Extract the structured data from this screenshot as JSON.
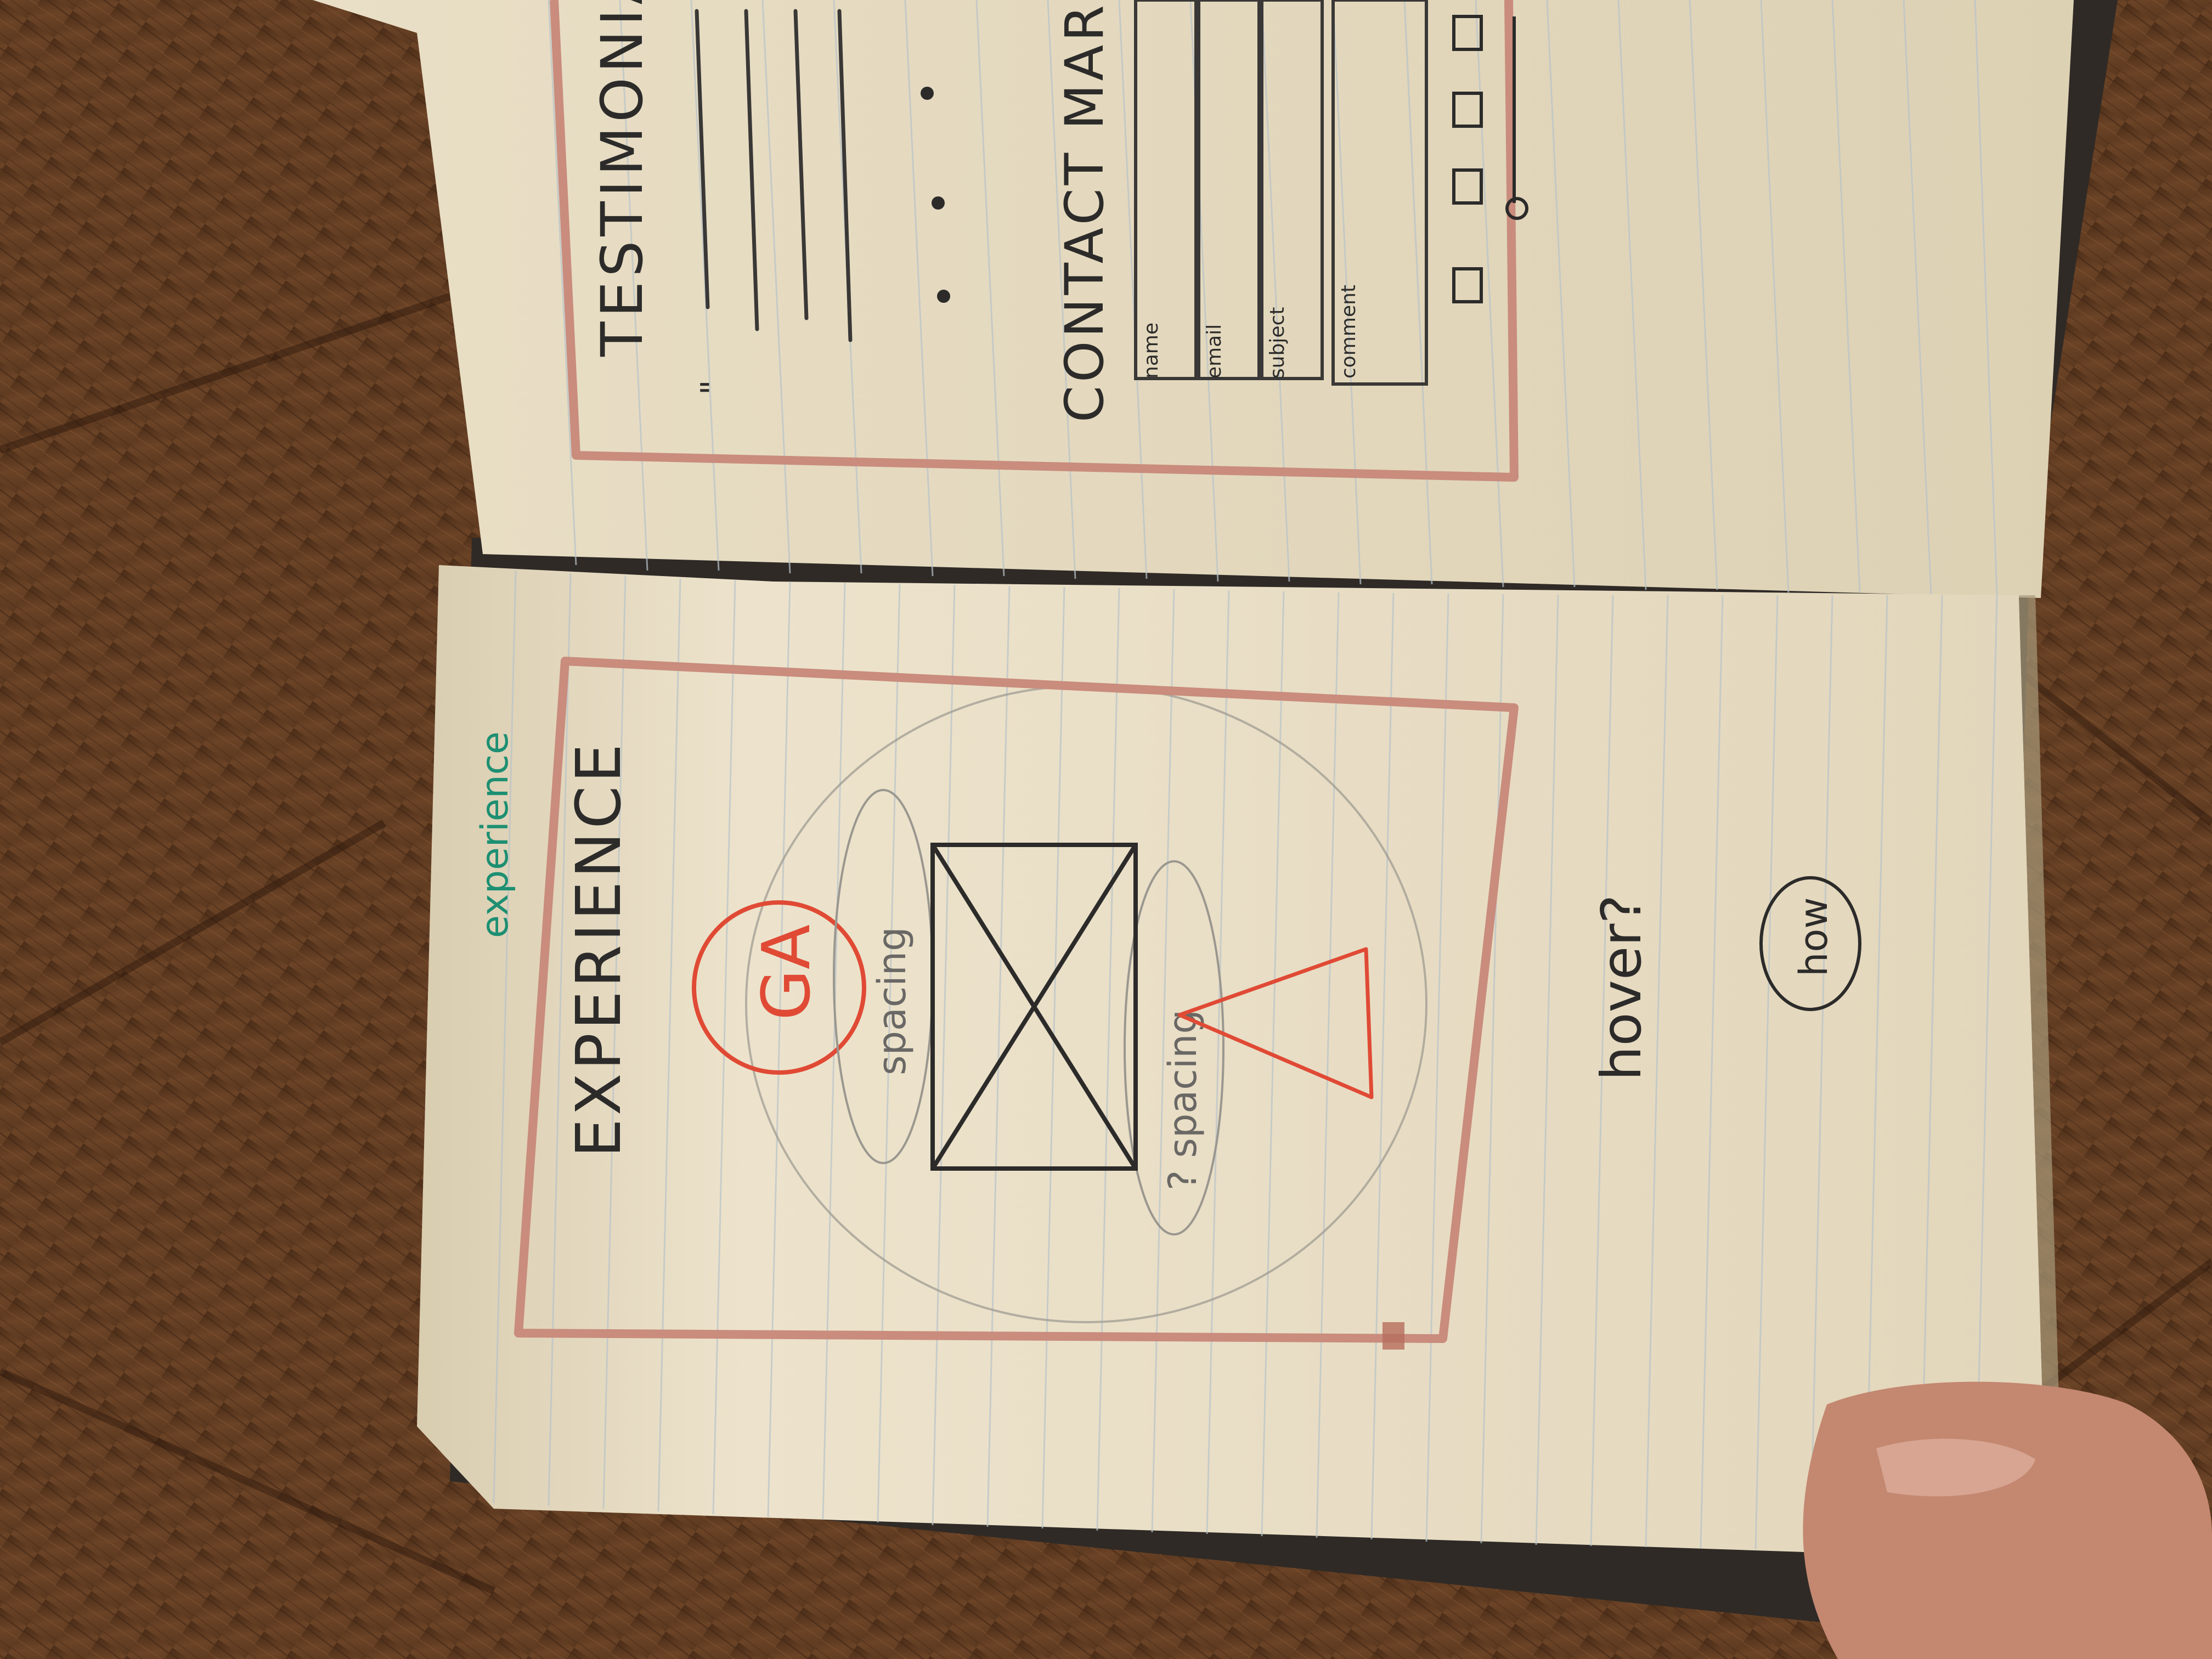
{
  "colors": {
    "floor_dark": "#3b2414",
    "floor_mid": "#6b4326",
    "floor_light": "#8a5a34",
    "paper": "#ece2cc",
    "paper_shadow": "#cbbf9f",
    "rule_line": "#b9c3c9",
    "frame_pink": "#c98c7d",
    "ink": "#2c2b2a",
    "red_ink": "#e04a35",
    "green_ink": "#1d8f72",
    "pencil": "#8d8a85",
    "skin": "#c48770"
  },
  "right_page": {
    "heading_testimonials": "TESTIMONIALS",
    "quote_mark": "\"",
    "heading_contact": "CONTACT MARIA-",
    "field_labels": [
      "name",
      "email",
      "subject",
      "comment"
    ]
  },
  "left_page": {
    "note_green": "experience",
    "heading": "EXPERIENCE",
    "logo_initials": "GA",
    "note_spacing_top": "spacing",
    "note_spacing_bottom": "? spacing",
    "note_hover": "hover?",
    "note_bubble": "how"
  },
  "icons": {
    "image_placeholder": "image-placeholder-icon",
    "logo_circle": "logo-circle-icon",
    "triangle": "triangle-icon",
    "social_squares": "social-square-icon",
    "slider_dot": "slider-dot-icon"
  }
}
